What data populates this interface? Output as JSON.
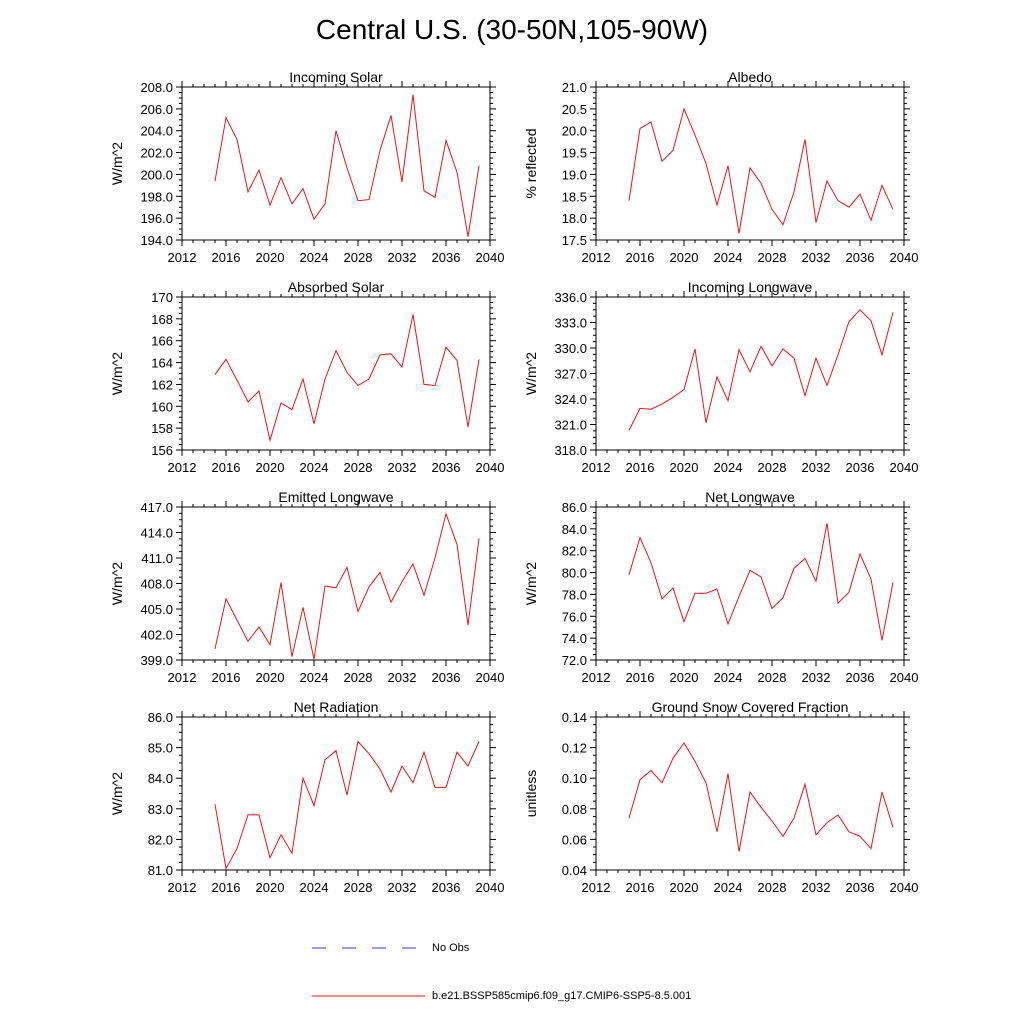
{
  "title": "Central U.S. (30-50N,105-90W)",
  "colors": {
    "model": "#e8141b",
    "obs": "#3b3bd0",
    "axis": "#000000"
  },
  "legend": {
    "obs_label": "No Obs",
    "model_label": "b.e21.BSSP585cmip6.f09_g17.CMIP6-SSP5-8.5.001"
  },
  "chart_data": [
    {
      "type": "line",
      "title": "Incoming Solar",
      "ylabel": "W/m^2",
      "xlim": [
        2012,
        2040
      ],
      "ylim": [
        194,
        208
      ],
      "xticks": [
        2012,
        2016,
        2020,
        2024,
        2028,
        2032,
        2036,
        2040
      ],
      "yticks": [
        "194.0",
        "196.0",
        "198.0",
        "200.0",
        "202.0",
        "204.0",
        "206.0",
        "208.0"
      ],
      "x": [
        2015,
        2016,
        2017,
        2018,
        2019,
        2020,
        2021,
        2022,
        2023,
        2024,
        2025,
        2026,
        2027,
        2028,
        2029,
        2030,
        2031,
        2032,
        2033,
        2034,
        2035,
        2036,
        2037,
        2038,
        2039
      ],
      "series": [
        {
          "values": [
            199.4,
            205.2,
            203.2,
            198.4,
            200.4,
            197.2,
            199.7,
            197.3,
            198.7,
            195.9,
            197.3,
            204.0,
            200.6,
            197.6,
            197.7,
            202.2,
            205.4,
            199.3,
            207.3,
            198.5,
            197.9,
            203.1,
            200.2,
            194.3,
            200.8
          ]
        }
      ]
    },
    {
      "type": "line",
      "title": "Albedo",
      "ylabel": "% reflected",
      "xlim": [
        2012,
        2040
      ],
      "ylim": [
        17.5,
        21.0
      ],
      "xticks": [
        2012,
        2016,
        2020,
        2024,
        2028,
        2032,
        2036,
        2040
      ],
      "yticks": [
        "17.5",
        "18.0",
        "18.5",
        "19.0",
        "19.5",
        "20.0",
        "20.5",
        "21.0"
      ],
      "x": [
        2015,
        2016,
        2017,
        2018,
        2019,
        2020,
        2021,
        2022,
        2023,
        2024,
        2025,
        2026,
        2027,
        2028,
        2029,
        2030,
        2031,
        2032,
        2033,
        2034,
        2035,
        2036,
        2037,
        2038,
        2039
      ],
      "series": [
        {
          "values": [
            18.4,
            20.05,
            20.2,
            19.3,
            19.55,
            20.5,
            19.9,
            19.25,
            18.3,
            19.2,
            17.65,
            19.15,
            18.8,
            18.2,
            17.85,
            18.6,
            19.8,
            17.9,
            18.85,
            18.4,
            18.25,
            18.55,
            17.95,
            18.75,
            18.2
          ]
        }
      ]
    },
    {
      "type": "line",
      "title": "Absorbed Solar",
      "ylabel": "W/m^2",
      "xlim": [
        2012,
        2040
      ],
      "ylim": [
        156,
        170
      ],
      "xticks": [
        2012,
        2016,
        2020,
        2024,
        2028,
        2032,
        2036,
        2040
      ],
      "yticks": [
        "156",
        "158",
        "160",
        "162",
        "164",
        "166",
        "168",
        "170"
      ],
      "x": [
        2015,
        2016,
        2017,
        2018,
        2019,
        2020,
        2021,
        2022,
        2023,
        2024,
        2025,
        2026,
        2027,
        2028,
        2029,
        2030,
        2031,
        2032,
        2033,
        2034,
        2035,
        2036,
        2037,
        2038,
        2039
      ],
      "series": [
        {
          "values": [
            162.9,
            164.3,
            162.4,
            160.4,
            161.4,
            156.9,
            160.3,
            159.7,
            162.5,
            158.4,
            162.5,
            165.1,
            163.1,
            161.9,
            162.5,
            164.7,
            164.8,
            163.6,
            168.4,
            162.0,
            161.9,
            165.4,
            164.2,
            158.1,
            164.3
          ]
        }
      ]
    },
    {
      "type": "line",
      "title": "Incoming Longwave",
      "ylabel": "W/m^2",
      "xlim": [
        2012,
        2040
      ],
      "ylim": [
        318,
        336
      ],
      "xticks": [
        2012,
        2016,
        2020,
        2024,
        2028,
        2032,
        2036,
        2040
      ],
      "yticks": [
        "318.0",
        "321.0",
        "324.0",
        "327.0",
        "330.0",
        "333.0",
        "336.0"
      ],
      "x": [
        2015,
        2016,
        2017,
        2018,
        2019,
        2020,
        2021,
        2022,
        2023,
        2024,
        2025,
        2026,
        2027,
        2028,
        2029,
        2030,
        2031,
        2032,
        2033,
        2034,
        2035,
        2036,
        2037,
        2038,
        2039
      ],
      "series": [
        {
          "values": [
            320.3,
            322.9,
            322.8,
            323.4,
            324.2,
            325.1,
            329.9,
            321.2,
            326.6,
            323.8,
            329.8,
            327.2,
            330.2,
            327.9,
            329.9,
            328.8,
            324.4,
            328.8,
            325.6,
            329.2,
            333.1,
            334.5,
            333.2,
            329.2,
            334.2
          ]
        }
      ]
    },
    {
      "type": "line",
      "title": "Emitted Longwave",
      "ylabel": "W/m^2",
      "xlim": [
        2012,
        2040
      ],
      "ylim": [
        399,
        417
      ],
      "xticks": [
        2012,
        2016,
        2020,
        2024,
        2028,
        2032,
        2036,
        2040
      ],
      "yticks": [
        "399.0",
        "402.0",
        "405.0",
        "408.0",
        "411.0",
        "414.0",
        "417.0"
      ],
      "x": [
        2015,
        2016,
        2017,
        2018,
        2019,
        2020,
        2021,
        2022,
        2023,
        2024,
        2025,
        2026,
        2027,
        2028,
        2029,
        2030,
        2031,
        2032,
        2033,
        2034,
        2035,
        2036,
        2037,
        2038,
        2039
      ],
      "series": [
        {
          "values": [
            400.3,
            406.2,
            403.7,
            401.2,
            402.9,
            400.8,
            408.1,
            399.4,
            405.2,
            399.1,
            407.7,
            407.5,
            409.9,
            404.7,
            407.6,
            409.3,
            405.8,
            408.2,
            410.3,
            406.6,
            411.0,
            416.2,
            412.6,
            403.1,
            413.3
          ]
        }
      ]
    },
    {
      "type": "line",
      "title": "Net Longwave",
      "ylabel": "W/m^2",
      "xlim": [
        2012,
        2040
      ],
      "ylim": [
        72,
        86
      ],
      "xticks": [
        2012,
        2016,
        2020,
        2024,
        2028,
        2032,
        2036,
        2040
      ],
      "yticks": [
        "72.0",
        "74.0",
        "76.0",
        "78.0",
        "80.0",
        "82.0",
        "84.0",
        "86.0"
      ],
      "x": [
        2015,
        2016,
        2017,
        2018,
        2019,
        2020,
        2021,
        2022,
        2023,
        2024,
        2025,
        2026,
        2027,
        2028,
        2029,
        2030,
        2031,
        2032,
        2033,
        2034,
        2035,
        2036,
        2037,
        2038,
        2039
      ],
      "series": [
        {
          "values": [
            79.8,
            83.2,
            80.9,
            77.6,
            78.6,
            75.5,
            78.1,
            78.1,
            78.5,
            75.3,
            77.8,
            80.2,
            79.6,
            76.7,
            77.7,
            80.4,
            81.3,
            79.2,
            84.5,
            77.2,
            78.2,
            81.7,
            79.4,
            73.8,
            79.1
          ]
        }
      ]
    },
    {
      "type": "line",
      "title": "Net Radiation",
      "ylabel": "W/m^2",
      "xlim": [
        2012,
        2040
      ],
      "ylim": [
        81,
        86
      ],
      "xticks": [
        2012,
        2016,
        2020,
        2024,
        2028,
        2032,
        2036,
        2040
      ],
      "yticks": [
        "81.0",
        "82.0",
        "83.0",
        "84.0",
        "85.0",
        "86.0"
      ],
      "x": [
        2015,
        2016,
        2017,
        2018,
        2019,
        2020,
        2021,
        2022,
        2023,
        2024,
        2025,
        2026,
        2027,
        2028,
        2029,
        2030,
        2031,
        2032,
        2033,
        2034,
        2035,
        2036,
        2037,
        2038,
        2039
      ],
      "series": [
        {
          "values": [
            83.15,
            81.05,
            81.7,
            82.8,
            82.8,
            81.4,
            82.15,
            81.55,
            84.0,
            83.1,
            84.6,
            84.9,
            83.45,
            85.2,
            84.8,
            84.3,
            83.55,
            84.4,
            83.85,
            84.85,
            83.7,
            83.7,
            84.85,
            84.4,
            85.2
          ]
        }
      ]
    },
    {
      "type": "line",
      "title": "Ground Snow Covered Fraction",
      "ylabel": "unitless",
      "xlim": [
        2012,
        2040
      ],
      "ylim": [
        0.04,
        0.14
      ],
      "xticks": [
        2012,
        2016,
        2020,
        2024,
        2028,
        2032,
        2036,
        2040
      ],
      "yticks": [
        "0.04",
        "0.06",
        "0.08",
        "0.10",
        "0.12",
        "0.14"
      ],
      "x": [
        2015,
        2016,
        2017,
        2018,
        2019,
        2020,
        2021,
        2022,
        2023,
        2024,
        2025,
        2026,
        2027,
        2028,
        2029,
        2030,
        2031,
        2032,
        2033,
        2034,
        2035,
        2036,
        2037,
        2038,
        2039
      ],
      "series": [
        {
          "values": [
            0.074,
            0.099,
            0.105,
            0.097,
            0.113,
            0.123,
            0.111,
            0.097,
            0.065,
            0.103,
            0.052,
            0.091,
            0.081,
            0.072,
            0.062,
            0.074,
            0.096,
            0.063,
            0.071,
            0.076,
            0.065,
            0.062,
            0.054,
            0.091,
            0.068
          ]
        }
      ]
    }
  ]
}
